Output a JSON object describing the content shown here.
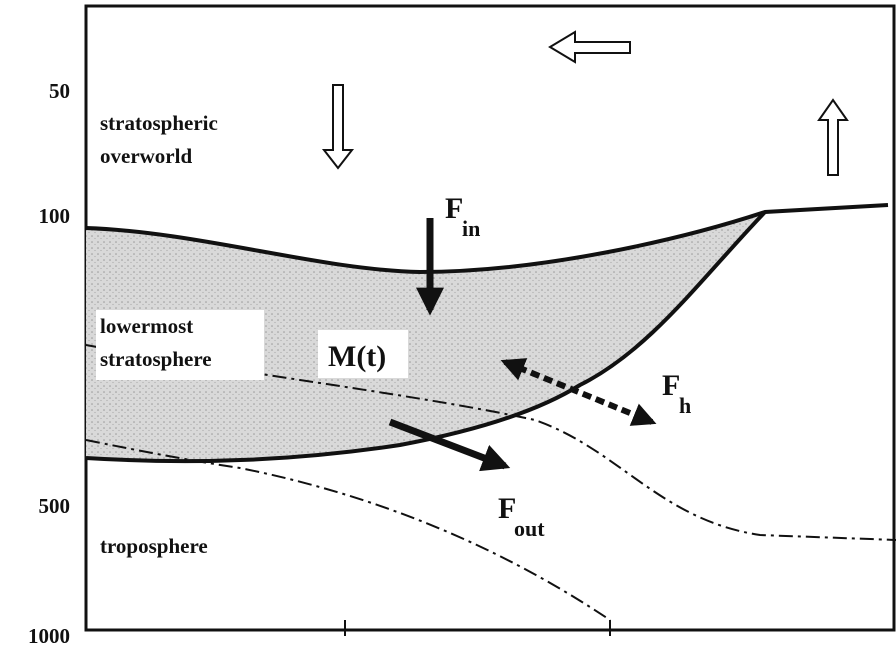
{
  "axis": {
    "ticks": [
      "50",
      "100",
      "500",
      "1000"
    ]
  },
  "regions": {
    "overworld": [
      "stratospheric",
      "overworld"
    ],
    "lowermost": [
      "lowermost",
      "stratosphere"
    ],
    "troposphere": "troposphere"
  },
  "mass": "M(t)",
  "fluxes": {
    "in": {
      "symbol": "F",
      "subscript": "in"
    },
    "out": {
      "symbol": "F",
      "subscript": "out"
    },
    "h": {
      "symbol": "F",
      "subscript": "h"
    }
  }
}
